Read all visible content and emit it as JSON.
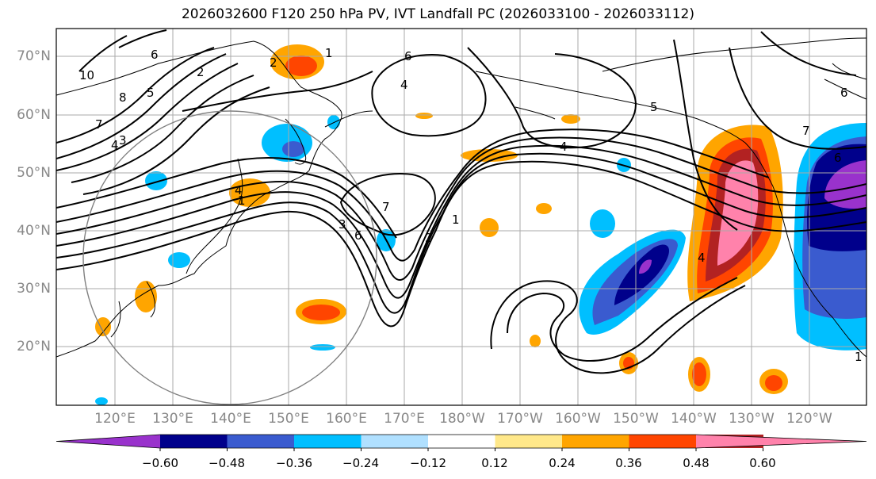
{
  "title": "2026032600 F120 250 hPa PV, IVT Landfall PC (2026033100 - 2026033112)",
  "lat_labels": [
    "70°N",
    "60°N",
    "50°N",
    "40°N",
    "30°N",
    "20°N"
  ],
  "lon_labels": [
    "120°E",
    "130°E",
    "140°E",
    "150°E",
    "160°E",
    "170°E",
    "180°W",
    "170°W",
    "160°W",
    "150°W",
    "140°W",
    "130°W",
    "120°W"
  ],
  "colorbar": {
    "colors": [
      "#9932CC",
      "#00008B",
      "#3A5BCF",
      "#00BFFF",
      "#B0E0FF",
      "#FFFFFF",
      "#FFE88A",
      "#FFA500",
      "#FF4500",
      "#B22222",
      "#FF82AB"
    ],
    "tick_labels": [
      "−0.60",
      "−0.48",
      "−0.36",
      "−0.24",
      "−0.12",
      "0.12",
      "0.24",
      "0.36",
      "0.48",
      "0.60"
    ]
  },
  "contour_labels": [
    "10",
    "8",
    "6",
    "2",
    "5",
    "4",
    "7",
    "3",
    "1",
    "6",
    "4",
    "2",
    "1",
    "4",
    "7",
    "3",
    "6",
    "2",
    "5",
    "4",
    "6",
    "1",
    "4",
    "6",
    "7",
    "1"
  ],
  "colors": {
    "contour": "#000000",
    "grid": "#aaaaaa",
    "circle": "#808080"
  }
}
